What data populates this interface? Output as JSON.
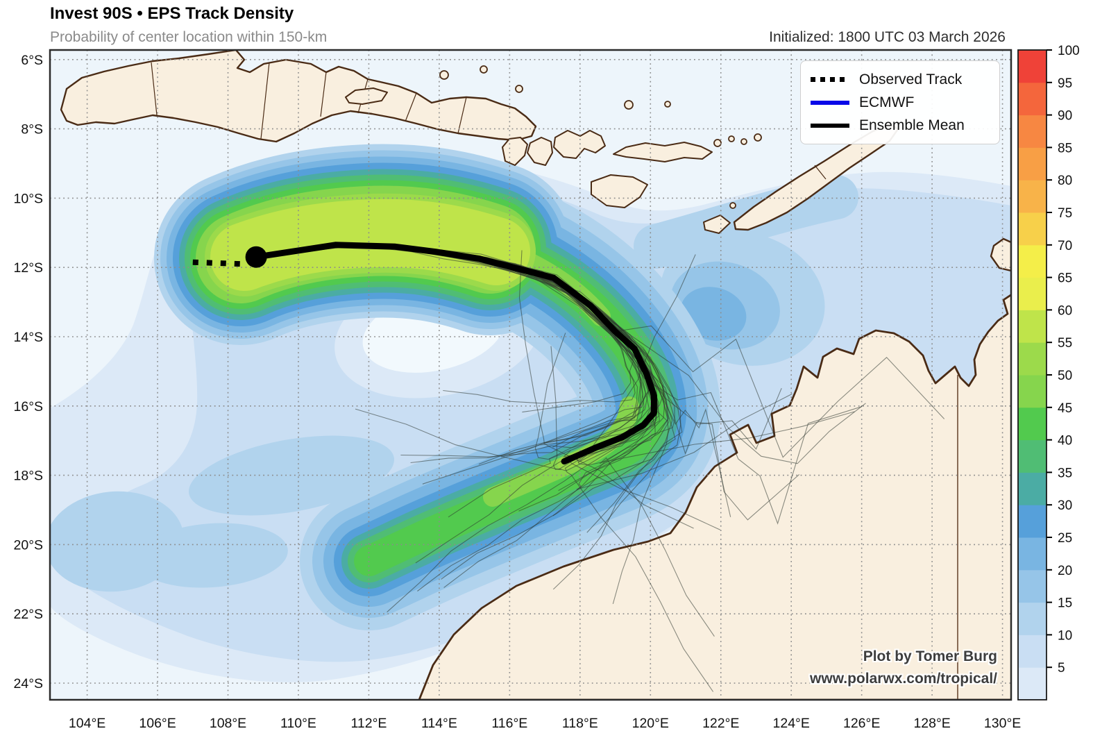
{
  "header": {
    "title": "Invest 90S • EPS Track Density",
    "subtitle": "Probability of center location within 150-km",
    "initialized": "Initialized: 1800 UTC 03 March 2026"
  },
  "legend": {
    "items": [
      {
        "label": "Observed Track",
        "swatch": "dotted-black",
        "color": "#000000"
      },
      {
        "label": "ECMWF",
        "swatch": "solid-blue",
        "color": "#0808e8"
      },
      {
        "label": "Ensemble Mean",
        "swatch": "solid-black",
        "color": "#000000"
      }
    ]
  },
  "attribution": {
    "line1": "Plot by Tomer Burg",
    "line2": "www.polarwx.com/tropical/"
  },
  "axes": {
    "x_tick_labels": [
      "104°E",
      "106°E",
      "108°E",
      "110°E",
      "112°E",
      "114°E",
      "116°E",
      "118°E",
      "120°E",
      "122°E",
      "124°E",
      "126°E",
      "128°E",
      "130°E"
    ],
    "x_tick_lons": [
      104,
      106,
      108,
      110,
      112,
      114,
      116,
      118,
      120,
      122,
      124,
      126,
      128,
      130
    ],
    "y_tick_labels": [
      "6°S",
      "8°S",
      "10°S",
      "12°S",
      "14°S",
      "16°S",
      "18°S",
      "20°S",
      "22°S",
      "24°S"
    ],
    "y_tick_lats": [
      6,
      8,
      10,
      12,
      14,
      16,
      18,
      20,
      22,
      24
    ]
  },
  "colorbar": {
    "tick_labels": [
      "5",
      "10",
      "15",
      "20",
      "25",
      "30",
      "35",
      "40",
      "45",
      "50",
      "55",
      "60",
      "65",
      "70",
      "75",
      "80",
      "85",
      "90",
      "95",
      "100"
    ],
    "levels": [
      0,
      5,
      10,
      15,
      20,
      25,
      30,
      35,
      40,
      45,
      50,
      55,
      60,
      65,
      70,
      75,
      80,
      85,
      90,
      95,
      100
    ],
    "colors": [
      "#dce9f7",
      "#c9def3",
      "#b1d3ed",
      "#96c5e8",
      "#79b5e2",
      "#56a0da",
      "#4baca4",
      "#50bd74",
      "#52ca4e",
      "#86d54d",
      "#9cda4b",
      "#bfe44a",
      "#eaee4c",
      "#f4ee49",
      "#f7d04a",
      "#f8b349",
      "#f89f45",
      "#f78742",
      "#f4663c",
      "#ef4238"
    ]
  },
  "chart_data": {
    "type": "heatmap",
    "title": "Invest 90S • EPS Track Density",
    "subtitle": "Probability of center location within 150-km",
    "initialized": "Initialized: 1800 UTC 03 March 2026",
    "storm": "Invest 90S",
    "quantity": "Probability (%) of center location within 150 km",
    "lon_range_e": [
      103.0,
      130.3
    ],
    "lat_range_s": [
      5.7,
      24.8
    ],
    "grid_step_deg": 2,
    "colorbar_range": [
      0,
      100
    ],
    "colorbar_step": 5,
    "max_density_shown_percent": 60,
    "observed_track_lonlat": [
      [
        107.0,
        11.85
      ],
      [
        107.35,
        11.85
      ],
      [
        107.7,
        11.86
      ],
      [
        108.05,
        11.88
      ],
      [
        108.4,
        11.9
      ],
      [
        108.8,
        11.7
      ]
    ],
    "current_position_lonlat": [
      108.8,
      11.7
    ],
    "ensemble_mean_track_lonlat": [
      [
        108.8,
        11.7
      ],
      [
        111.05,
        11.35
      ],
      [
        112.75,
        11.4
      ],
      [
        113.9,
        11.55
      ],
      [
        115.15,
        11.75
      ],
      [
        117.25,
        12.3
      ],
      [
        118.3,
        13.1
      ],
      [
        119.0,
        13.85
      ],
      [
        119.55,
        14.35
      ],
      [
        119.9,
        15.1
      ],
      [
        120.1,
        15.7
      ],
      [
        120.1,
        16.2
      ],
      [
        119.8,
        16.55
      ],
      [
        119.2,
        16.9
      ],
      [
        118.45,
        17.2
      ],
      [
        117.55,
        17.6
      ]
    ],
    "ensemble_members": {
      "count": 38,
      "seed": 90
    },
    "legend_entries": [
      "Observed Track",
      "ECMWF",
      "Ensemble Mean"
    ],
    "map_features": [
      "Java",
      "Madura",
      "Bali",
      "Lombok",
      "Sumbawa",
      "Flores",
      "Sumba",
      "Rote",
      "Timor",
      "Northwest Australia",
      "WA-NT border"
    ]
  }
}
